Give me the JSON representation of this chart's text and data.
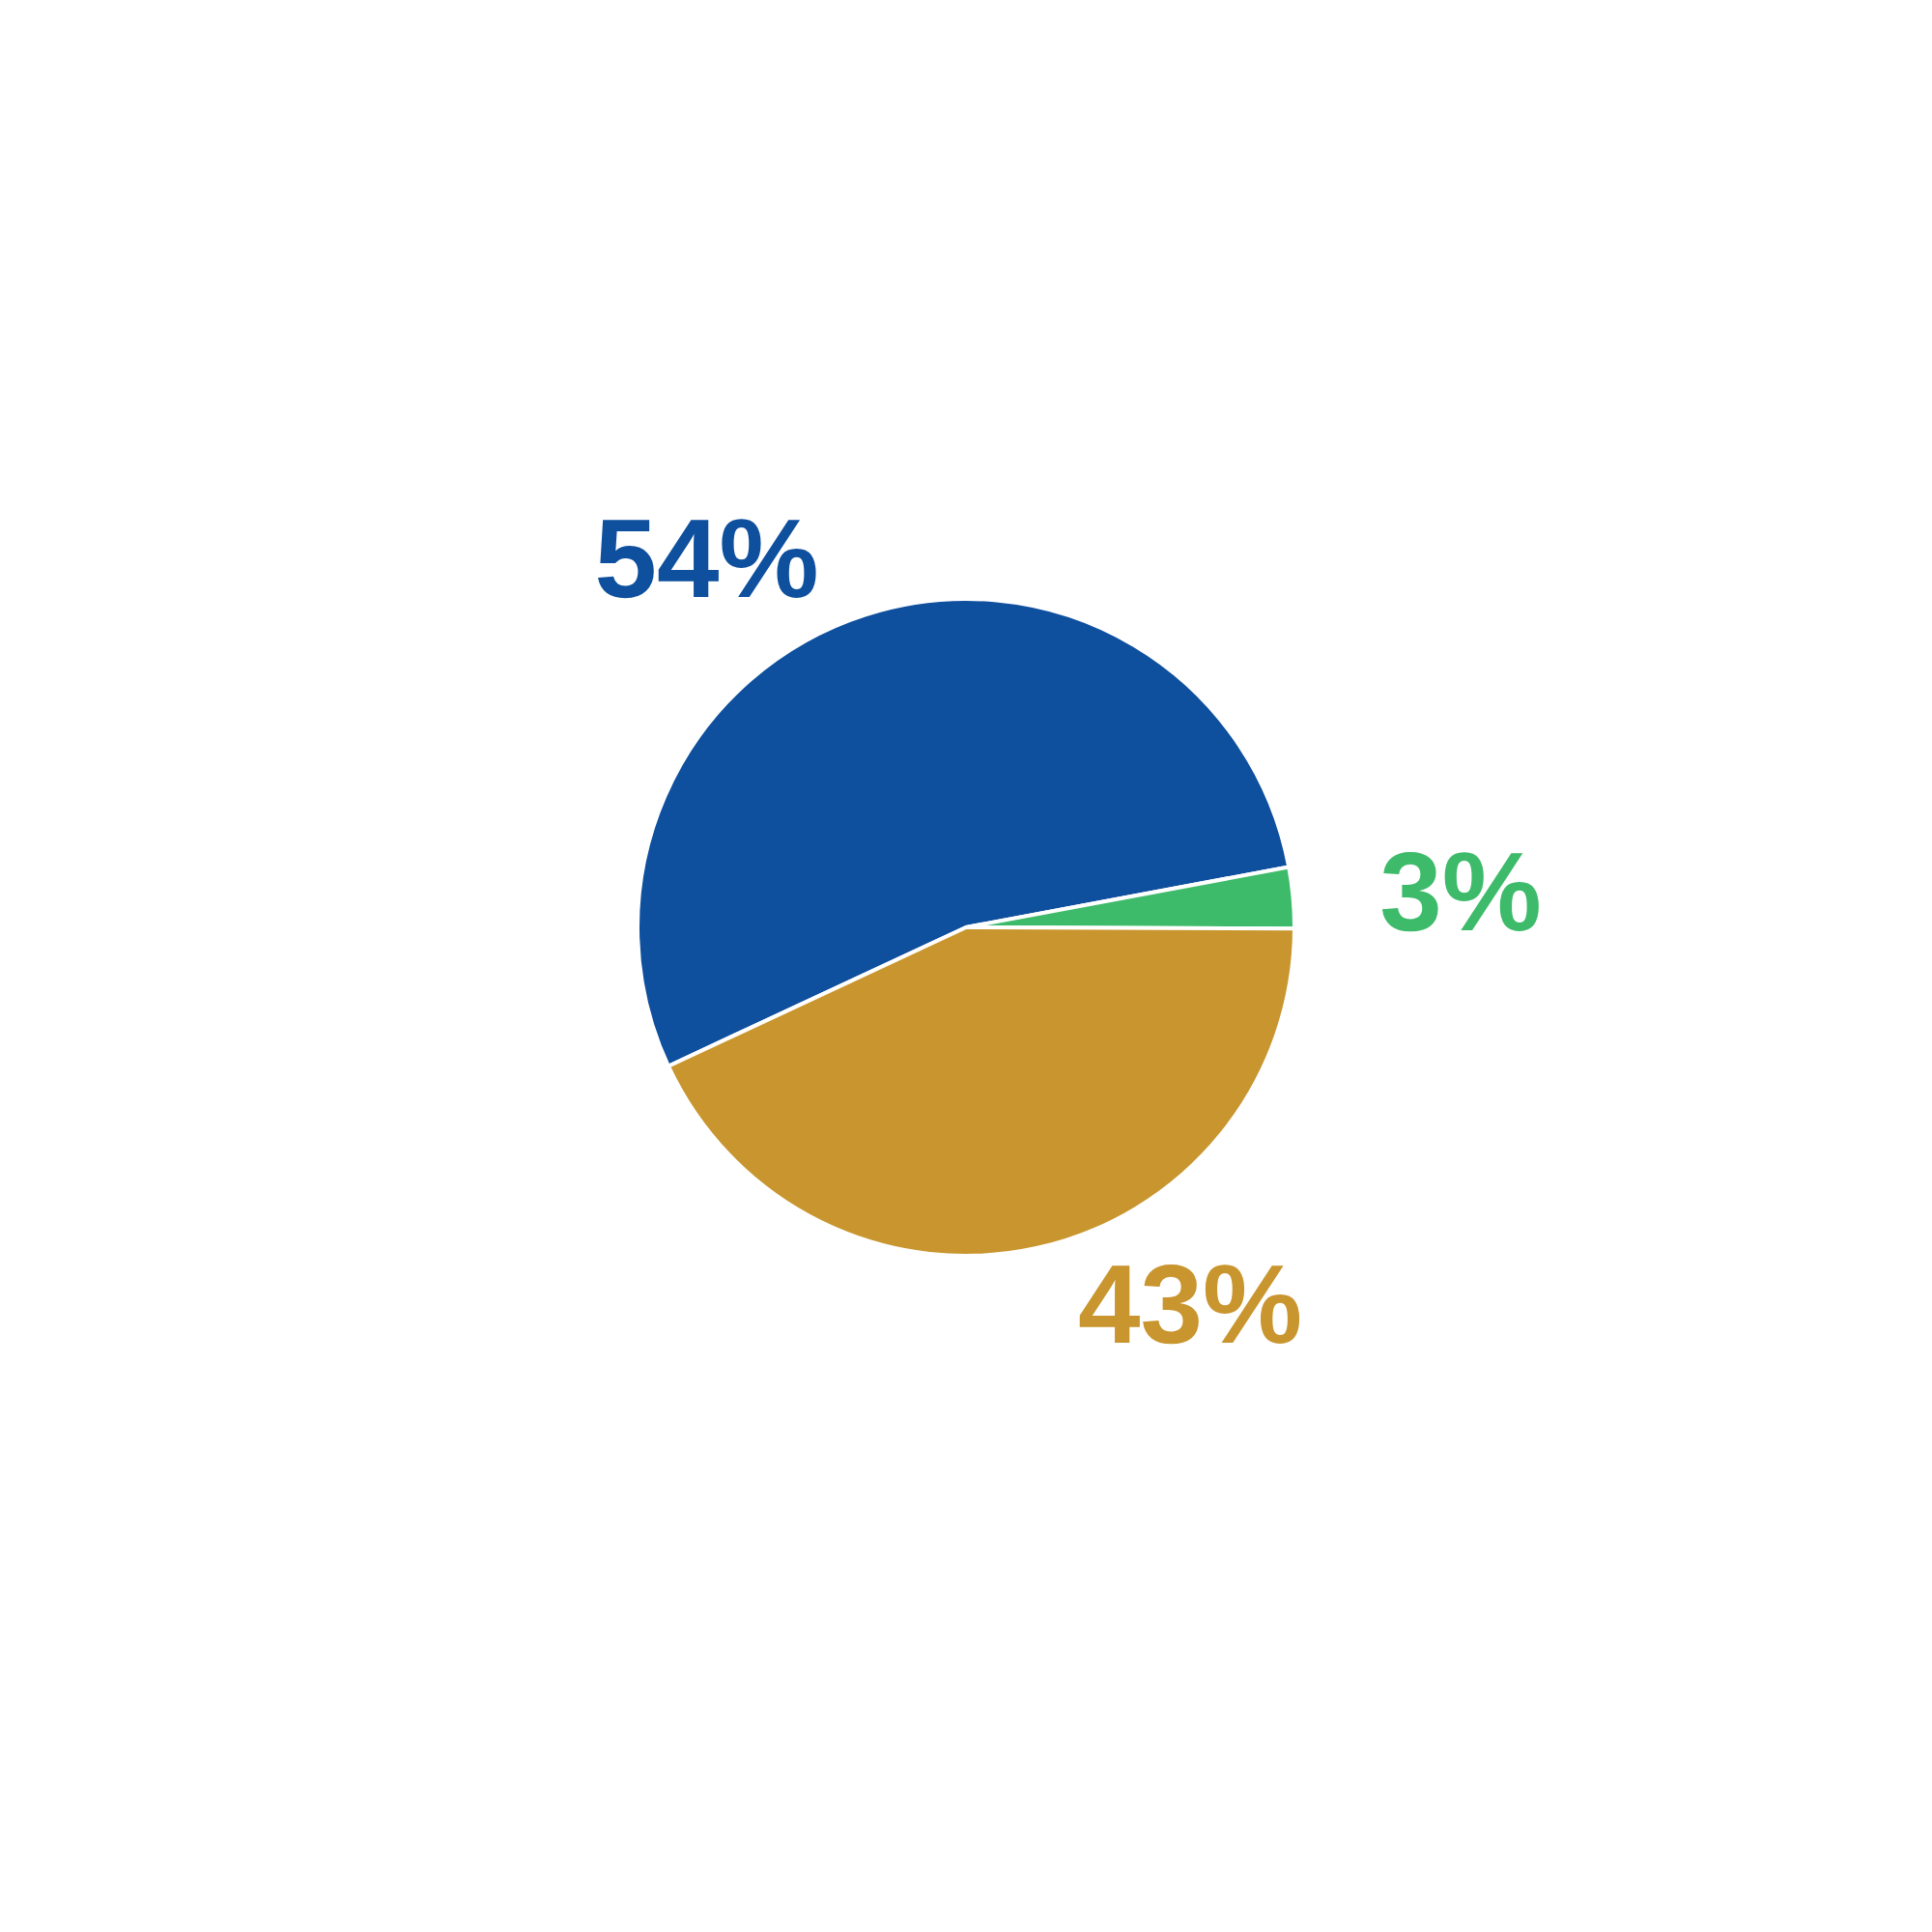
{
  "chart_data": {
    "type": "pie",
    "categories": [
      null,
      null,
      null
    ],
    "values": [
      54,
      3,
      43
    ],
    "colors": [
      "#0e4f9e",
      "#3dbb6a",
      "#c9952e"
    ],
    "value_labels": [
      "54%",
      "3%",
      "43%"
    ]
  }
}
